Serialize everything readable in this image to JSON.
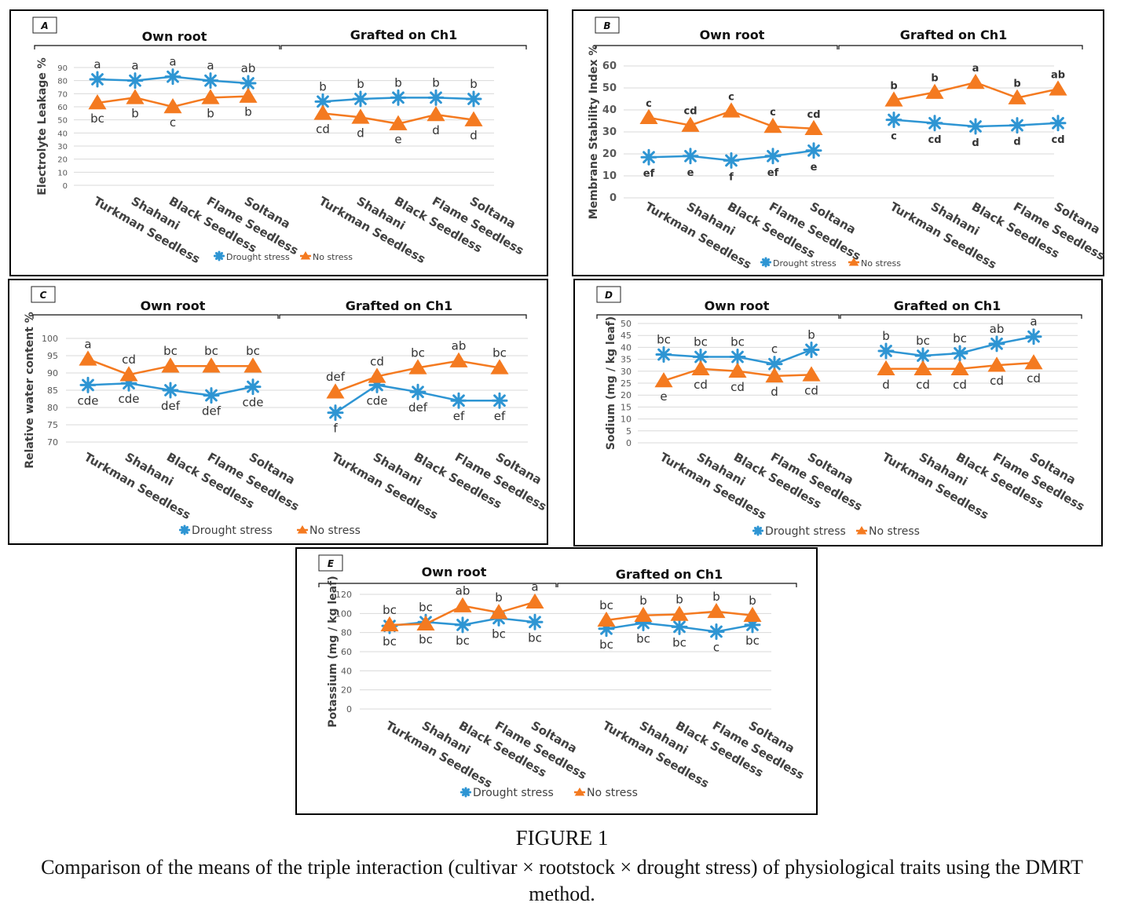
{
  "figure": {
    "title": "FIGURE 1",
    "caption": "Comparison of the means of the triple interaction (cultivar × rootstock × drought stress) of physiological traits using the DMRT method."
  },
  "legend": {
    "series": [
      {
        "name": "Drought stress",
        "color": "#2e95d3",
        "marker": "asterisk"
      },
      {
        "name": "No stress",
        "color": "#f47a20",
        "marker": "triangle"
      }
    ]
  },
  "chart_data": [
    {
      "panel": "A",
      "type": "line",
      "ylabel": "Electrolyte Leakage %",
      "ylim": [
        0,
        90
      ],
      "yticks": [
        0,
        10,
        20,
        30,
        40,
        50,
        60,
        70,
        80,
        90
      ],
      "groups": [
        "Own root",
        "Grafted on Ch1"
      ],
      "categories": [
        "Turkman Seedless",
        "Shahani",
        "Black Seedless",
        "Flame Seedless",
        "Soltana"
      ],
      "series": [
        {
          "name": "Drought stress",
          "values": [
            [
              81,
              80,
              83,
              80,
              78
            ],
            [
              64,
              66,
              67,
              67,
              66
            ]
          ],
          "labels": [
            [
              "a",
              "a",
              "a",
              "a",
              "ab"
            ],
            [
              "b",
              "b",
              "b",
              "b",
              "b"
            ]
          ]
        },
        {
          "name": "No stress",
          "values": [
            [
              63,
              67,
              60,
              67,
              68
            ],
            [
              55,
              52,
              47,
              54,
              50
            ]
          ],
          "labels": [
            [
              "bc",
              "b",
              "c",
              "b",
              "b"
            ],
            [
              "cd",
              "d",
              "e",
              "d",
              "d"
            ]
          ]
        }
      ],
      "grid": true,
      "legend": "bottom"
    },
    {
      "panel": "B",
      "type": "line",
      "ylabel": "Membrane Stability Index %",
      "ylim": [
        0,
        60
      ],
      "yticks": [
        0,
        10,
        20,
        30,
        40,
        50,
        60
      ],
      "groups": [
        "Own root",
        "Grafted on Ch1"
      ],
      "categories": [
        "Turkman Seedless",
        "Shahani",
        "Black Seedless",
        "Flame Seedless",
        "Soltana"
      ],
      "series": [
        {
          "name": "Drought stress",
          "values": [
            [
              18.5,
              19,
              17,
              19,
              21.5
            ],
            [
              35.5,
              34,
              32.5,
              33,
              34
            ]
          ],
          "labels": [
            [
              "ef",
              "e",
              "f",
              "ef",
              "e"
            ],
            [
              "c",
              "cd",
              "d",
              "d",
              "cd"
            ]
          ]
        },
        {
          "name": "No stress",
          "values": [
            [
              36.5,
              33,
              39.5,
              32.5,
              31.5
            ],
            [
              44.5,
              48,
              52.5,
              45.5,
              49.5
            ]
          ],
          "labels": [
            [
              "c",
              "cd",
              "c",
              "c",
              "cd"
            ],
            [
              "b",
              "b",
              "a",
              "b",
              "ab"
            ]
          ]
        }
      ],
      "grid": true,
      "legend": "bottom"
    },
    {
      "panel": "C",
      "type": "line",
      "ylabel": "Relative water content %",
      "ylim": [
        70,
        100
      ],
      "yticks": [
        70,
        75,
        80,
        85,
        90,
        95,
        100
      ],
      "groups": [
        "Own root",
        "Grafted on Ch1"
      ],
      "categories": [
        "Turkman Seedless",
        "Shahani",
        "Black Seedless",
        "Flame Seedless",
        "Soltana"
      ],
      "series": [
        {
          "name": "Drought stress",
          "values": [
            [
              86.5,
              87,
              85,
              83.5,
              86
            ],
            [
              78.5,
              86.5,
              84.5,
              82,
              82
            ]
          ],
          "labels": [
            [
              "cde",
              "cde",
              "def",
              "def",
              "cde"
            ],
            [
              "f",
              "cde",
              "def",
              "ef",
              "ef"
            ]
          ]
        },
        {
          "name": "No stress",
          "values": [
            [
              94,
              89.5,
              92,
              92,
              92
            ],
            [
              84.5,
              89,
              91.5,
              93.5,
              91.5
            ]
          ],
          "labels": [
            [
              "a",
              "cd",
              "bc",
              "bc",
              "bc"
            ],
            [
              "def",
              "cd",
              "bc",
              "ab",
              "bc"
            ]
          ]
        }
      ],
      "grid": true,
      "legend": "bottom"
    },
    {
      "panel": "D",
      "type": "line",
      "ylabel": "Sodium (mg / kg leaf)",
      "ylim": [
        0,
        50
      ],
      "yticks": [
        0,
        5,
        10,
        15,
        20,
        25,
        30,
        35,
        40,
        45,
        50
      ],
      "groups": [
        "Own root",
        "Grafted on Ch1"
      ],
      "categories": [
        "Turkman Seedless",
        "Shahani",
        "Black Seedless",
        "Flame Seedless",
        "Soltana"
      ],
      "series": [
        {
          "name": "Drought stress",
          "values": [
            [
              37,
              36,
              36,
              33,
              39
            ],
            [
              38.5,
              36.5,
              37.5,
              41.5,
              44.5
            ]
          ],
          "labels": [
            [
              "bc",
              "bc",
              "bc",
              "c",
              "b"
            ],
            [
              "b",
              "bc",
              "bc",
              "ab",
              "a"
            ]
          ]
        },
        {
          "name": "No stress",
          "values": [
            [
              26,
              31,
              30,
              28,
              28.5
            ],
            [
              31,
              31,
              31,
              32.5,
              33.5
            ]
          ],
          "labels": [
            [
              "e",
              "cd",
              "cd",
              "d",
              "cd"
            ],
            [
              "d",
              "cd",
              "cd",
              "cd",
              "cd"
            ]
          ]
        }
      ],
      "grid": true,
      "legend": "bottom"
    },
    {
      "panel": "E",
      "type": "line",
      "ylabel": "Potassium (mg / kg leaf)",
      "ylim": [
        0,
        120
      ],
      "yticks": [
        0,
        20,
        40,
        60,
        80,
        100,
        120
      ],
      "groups": [
        "Own root",
        "Grafted on Ch1"
      ],
      "categories": [
        "Turkman Seedless",
        "Shahani",
        "Black Seedless",
        "Flame Seedless",
        "Soltana"
      ],
      "series": [
        {
          "name": "Drought stress",
          "values": [
            [
              87,
              91,
              88,
              95,
              91
            ],
            [
              84,
              90,
              86,
              81,
              88
            ]
          ],
          "labels": [
            [
              "bc",
              "bc",
              "bc",
              "bc",
              "bc"
            ],
            [
              "bc",
              "bc",
              "bc",
              "c",
              "bc"
            ]
          ]
        },
        {
          "name": "No stress",
          "values": [
            [
              88,
              89,
              108,
              101,
              112
            ],
            [
              93,
              98,
              99,
              102,
              98
            ]
          ],
          "labels": [
            [
              "bc",
              "bc",
              "ab",
              "b",
              "a"
            ],
            [
              "bc",
              "b",
              "b",
              "b",
              "b"
            ]
          ]
        }
      ],
      "grid": true,
      "legend": "bottom"
    }
  ]
}
